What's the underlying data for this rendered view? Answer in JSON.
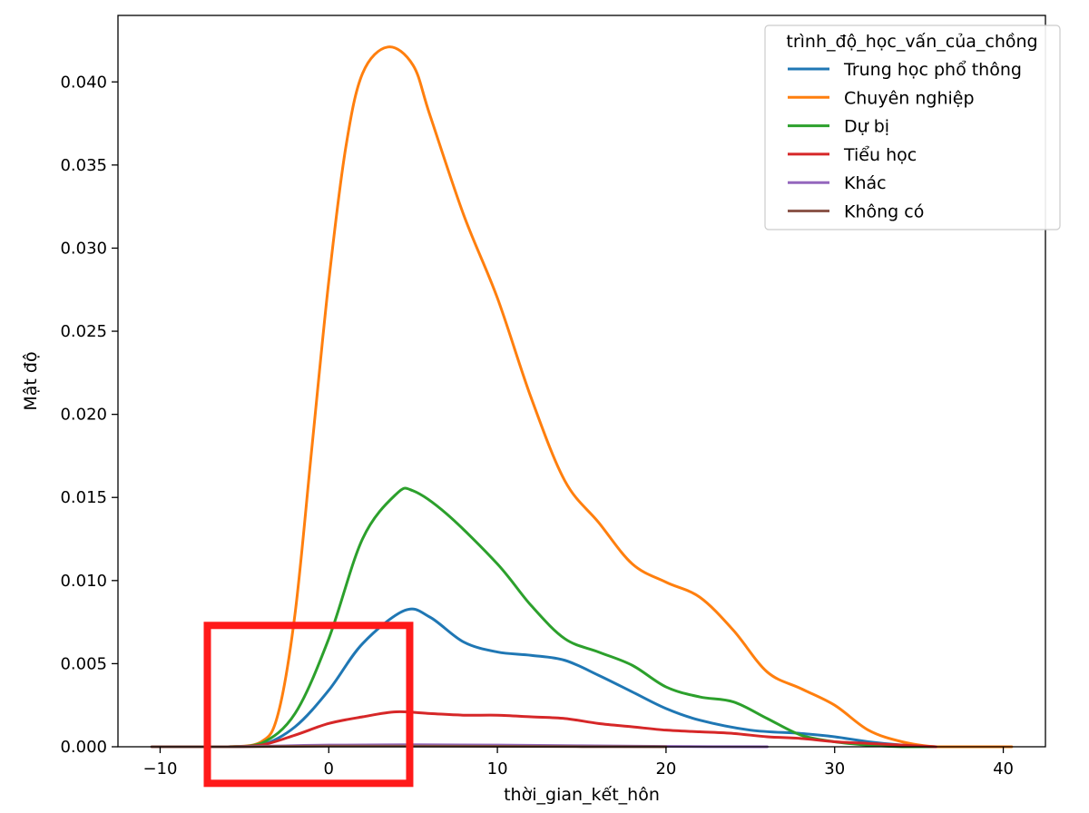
{
  "chart_data": {
    "type": "line",
    "xlabel": "thời_gian_kết_hôn",
    "ylabel": "Mật độ",
    "xlim": [
      -12.5,
      42.5
    ],
    "ylim": [
      0,
      0.044
    ],
    "xticks": [
      -10,
      0,
      10,
      20,
      30,
      40
    ],
    "xtick_labels": [
      "−10",
      "0",
      "10",
      "20",
      "30",
      "40"
    ],
    "yticks": [
      0,
      0.005,
      0.01,
      0.015,
      0.02,
      0.025,
      0.03,
      0.035,
      0.04
    ],
    "ytick_labels": [
      "0.000",
      "0.005",
      "0.010",
      "0.015",
      "0.020",
      "0.025",
      "0.030",
      "0.035",
      "0.040"
    ],
    "grid": false,
    "legend": {
      "title": "trình_độ_học_vấn_của_chồng",
      "placement": "top-right"
    },
    "series": [
      {
        "name": "Trung học phổ thông",
        "color": "#1f77b4",
        "points": [
          [
            -10,
            0
          ],
          [
            -6,
            0
          ],
          [
            -4,
            0.0001
          ],
          [
            -2,
            0.0012
          ],
          [
            0,
            0.0034
          ],
          [
            2,
            0.0062
          ],
          [
            4.5,
            0.0082
          ],
          [
            6,
            0.0078
          ],
          [
            8,
            0.0063
          ],
          [
            10,
            0.0057
          ],
          [
            12,
            0.0055
          ],
          [
            14,
            0.0052
          ],
          [
            16,
            0.0043
          ],
          [
            18,
            0.0033
          ],
          [
            20,
            0.0023
          ],
          [
            22,
            0.0016
          ],
          [
            25,
            0.001
          ],
          [
            28,
            0.0008
          ],
          [
            30,
            0.0006
          ],
          [
            32,
            0.0003
          ],
          [
            34,
            0.0001
          ],
          [
            36,
            0
          ],
          [
            38,
            0
          ]
        ]
      },
      {
        "name": "Chuyên nghiệp",
        "color": "#ff7f0e",
        "points": [
          [
            -10,
            0
          ],
          [
            -6,
            0
          ],
          [
            -4,
            0.0003
          ],
          [
            -3,
            0.002
          ],
          [
            -2,
            0.008
          ],
          [
            -1,
            0.018
          ],
          [
            0,
            0.028
          ],
          [
            1,
            0.036
          ],
          [
            2,
            0.0405
          ],
          [
            3.5,
            0.0421
          ],
          [
            5,
            0.041
          ],
          [
            6,
            0.038
          ],
          [
            8,
            0.032
          ],
          [
            10,
            0.027
          ],
          [
            12,
            0.021
          ],
          [
            14,
            0.016
          ],
          [
            16,
            0.0135
          ],
          [
            18,
            0.011
          ],
          [
            20,
            0.0099
          ],
          [
            22,
            0.009
          ],
          [
            24,
            0.007
          ],
          [
            26,
            0.0045
          ],
          [
            28,
            0.0035
          ],
          [
            30,
            0.0025
          ],
          [
            32,
            0.001
          ],
          [
            34,
            0.0003
          ],
          [
            36,
            0
          ],
          [
            38,
            0
          ],
          [
            40.5,
            0
          ]
        ]
      },
      {
        "name": "Dự bị",
        "color": "#2ca02c",
        "points": [
          [
            -10,
            0
          ],
          [
            -6,
            0
          ],
          [
            -4,
            0.0002
          ],
          [
            -2,
            0.002
          ],
          [
            0,
            0.0065
          ],
          [
            2,
            0.0125
          ],
          [
            4,
            0.0152
          ],
          [
            5,
            0.0154
          ],
          [
            7,
            0.014
          ],
          [
            10,
            0.011
          ],
          [
            12,
            0.0085
          ],
          [
            14,
            0.0065
          ],
          [
            16,
            0.0057
          ],
          [
            18,
            0.0049
          ],
          [
            20,
            0.0036
          ],
          [
            22,
            0.003
          ],
          [
            24,
            0.0027
          ],
          [
            26,
            0.0017
          ],
          [
            28,
            0.0007
          ],
          [
            30,
            0.0003
          ],
          [
            32,
            0.0001
          ],
          [
            34,
            0
          ],
          [
            36,
            0
          ]
        ]
      },
      {
        "name": "Tiểu học",
        "color": "#d62728",
        "points": [
          [
            -10,
            0
          ],
          [
            -6,
            0
          ],
          [
            -4,
            0.0001
          ],
          [
            -2,
            0.0007
          ],
          [
            0,
            0.0014
          ],
          [
            2,
            0.0018
          ],
          [
            4,
            0.0021
          ],
          [
            6,
            0.002
          ],
          [
            8,
            0.0019
          ],
          [
            10,
            0.0019
          ],
          [
            12,
            0.0018
          ],
          [
            14,
            0.0017
          ],
          [
            16,
            0.0014
          ],
          [
            18,
            0.0012
          ],
          [
            20,
            0.001
          ],
          [
            22,
            0.0009
          ],
          [
            24,
            0.0008
          ],
          [
            26,
            0.0006
          ],
          [
            28,
            0.0005
          ],
          [
            30,
            0.0003
          ],
          [
            32,
            0.0002
          ],
          [
            34,
            0.0001
          ],
          [
            36,
            0
          ]
        ]
      },
      {
        "name": "Khác",
        "color": "#9467bd",
        "points": [
          [
            -10,
            0
          ],
          [
            -6,
            0
          ],
          [
            -3,
            5e-05
          ],
          [
            0,
            0.0001
          ],
          [
            5,
            0.00012
          ],
          [
            10,
            0.0001
          ],
          [
            15,
            6e-05
          ],
          [
            20,
            2e-05
          ],
          [
            26,
            0
          ]
        ]
      },
      {
        "name": "Không có",
        "color": "#8c564b",
        "points": [
          [
            -10.5,
            0
          ],
          [
            -6,
            0
          ],
          [
            -3,
            2e-05
          ],
          [
            0,
            4e-05
          ],
          [
            5,
            4e-05
          ],
          [
            10,
            3e-05
          ],
          [
            15,
            1e-05
          ],
          [
            20,
            0
          ]
        ]
      }
    ],
    "annotations": [
      {
        "type": "highlight-box",
        "color": "#ff1a1a",
        "x_range": [
          -7.2,
          4.8
        ],
        "y_range": [
          -0.0022,
          0.0073
        ]
      }
    ]
  }
}
